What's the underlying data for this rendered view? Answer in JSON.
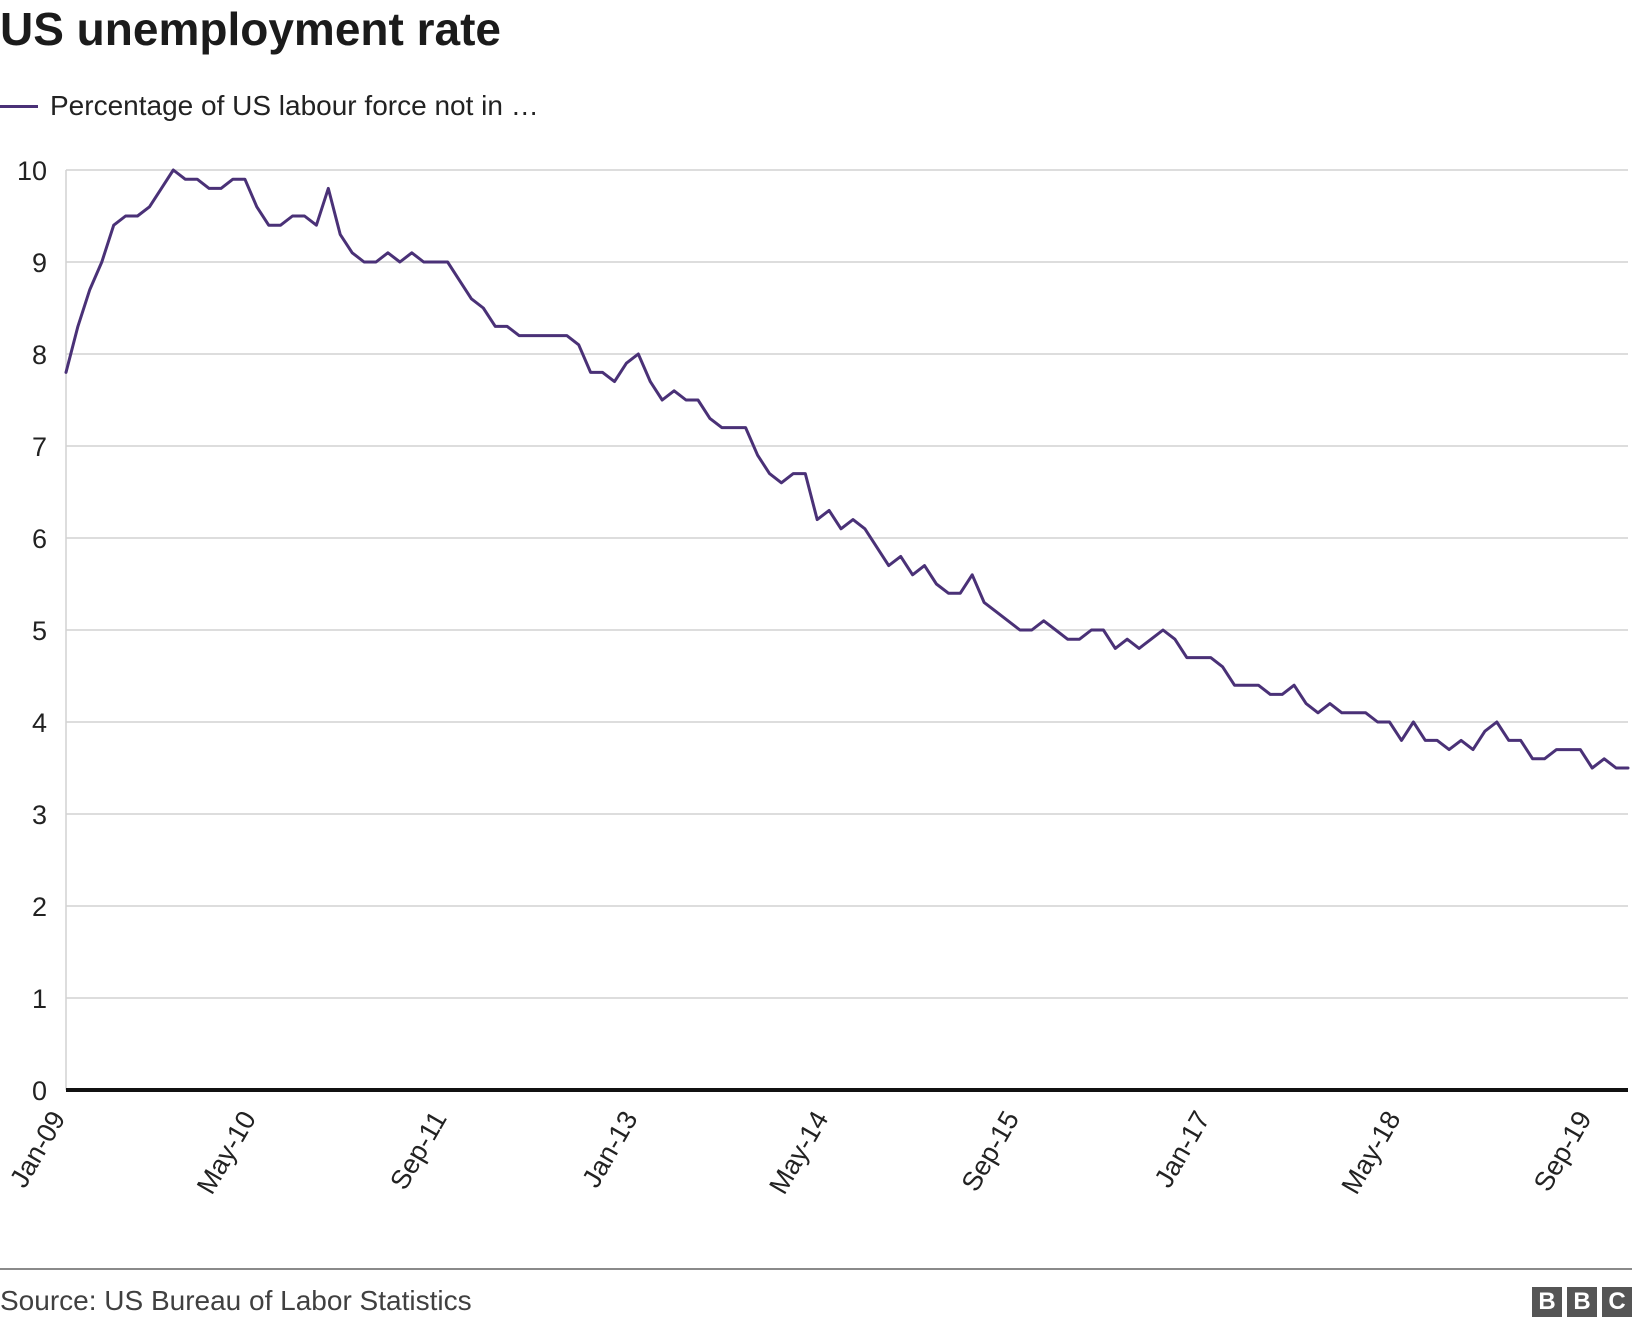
{
  "chart_data": {
    "type": "line",
    "title": "US unemployment rate",
    "xlabel": "",
    "ylabel": "",
    "ylim": [
      0,
      10
    ],
    "yticks": [
      "0",
      "1",
      "2",
      "3",
      "4",
      "5",
      "6",
      "7",
      "8",
      "9",
      "10"
    ],
    "xticks": [
      {
        "label": "Jan-09",
        "index": 0
      },
      {
        "label": "May-10",
        "index": 16
      },
      {
        "label": "Sep-11",
        "index": 32
      },
      {
        "label": "Jan-13",
        "index": 48
      },
      {
        "label": "May-14",
        "index": 64
      },
      {
        "label": "Sep-15",
        "index": 80
      },
      {
        "label": "Jan-17",
        "index": 96
      },
      {
        "label": "May-18",
        "index": 112
      },
      {
        "label": "Sep-19",
        "index": 128
      }
    ],
    "grid": true,
    "legend_position": "top-left",
    "series": [
      {
        "name": "Percentage of US labour force not in …",
        "color": "#4a3177",
        "x_start": "Jan-09",
        "x_end": "Dec-19",
        "values": [
          7.8,
          8.3,
          8.7,
          9.0,
          9.4,
          9.5,
          9.5,
          9.6,
          9.8,
          10.0,
          9.9,
          9.9,
          9.8,
          9.8,
          9.9,
          9.9,
          9.6,
          9.4,
          9.4,
          9.5,
          9.5,
          9.4,
          9.8,
          9.3,
          9.1,
          9.0,
          9.0,
          9.1,
          9.0,
          9.1,
          9.0,
          9.0,
          9.0,
          8.8,
          8.6,
          8.5,
          8.3,
          8.3,
          8.2,
          8.2,
          8.2,
          8.2,
          8.2,
          8.1,
          7.8,
          7.8,
          7.7,
          7.9,
          8.0,
          7.7,
          7.5,
          7.6,
          7.5,
          7.5,
          7.3,
          7.2,
          7.2,
          7.2,
          6.9,
          6.7,
          6.6,
          6.7,
          6.7,
          6.2,
          6.3,
          6.1,
          6.2,
          6.1,
          5.9,
          5.7,
          5.8,
          5.6,
          5.7,
          5.5,
          5.4,
          5.4,
          5.6,
          5.3,
          5.2,
          5.1,
          5.0,
          5.0,
          5.1,
          5.0,
          4.9,
          4.9,
          5.0,
          5.0,
          4.8,
          4.9,
          4.8,
          4.9,
          5.0,
          4.9,
          4.7,
          4.7,
          4.7,
          4.6,
          4.4,
          4.4,
          4.4,
          4.3,
          4.3,
          4.4,
          4.2,
          4.1,
          4.2,
          4.1,
          4.1,
          4.1,
          4.0,
          4.0,
          3.8,
          4.0,
          3.8,
          3.8,
          3.7,
          3.8,
          3.7,
          3.9,
          4.0,
          3.8,
          3.8,
          3.6,
          3.6,
          3.7,
          3.7,
          3.7,
          3.5,
          3.6,
          3.5,
          3.5
        ]
      }
    ]
  },
  "footer": {
    "source": "Source: US Bureau of Labor Statistics",
    "logo_letters": [
      "B",
      "B",
      "C"
    ]
  },
  "colors": {
    "series": "#4a3177",
    "grid": "#d2d2d2",
    "baseline": "#111111",
    "logo": "#555555"
  }
}
